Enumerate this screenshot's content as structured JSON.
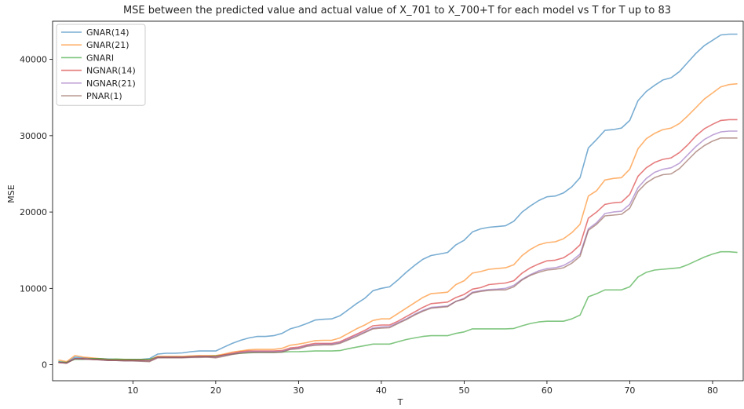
{
  "chart_data": {
    "type": "line",
    "title": "MSE between the predicted value and actual value of X_701 to X_700+T for each model vs T for T up to 83",
    "xlabel": "T",
    "ylabel": "MSE",
    "xlim": [
      0.3,
      83.7
    ],
    "ylim": [
      -2100,
      45000
    ],
    "xticks": [
      10,
      20,
      30,
      40,
      50,
      60,
      70,
      80
    ],
    "yticks": [
      0,
      10000,
      20000,
      30000,
      40000
    ],
    "grid": false,
    "legend_position": "top-left",
    "x": [
      1,
      2,
      3,
      4,
      5,
      6,
      7,
      8,
      9,
      10,
      11,
      12,
      13,
      14,
      15,
      16,
      17,
      18,
      19,
      20,
      21,
      22,
      23,
      24,
      25,
      26,
      27,
      28,
      29,
      30,
      31,
      32,
      33,
      34,
      35,
      36,
      37,
      38,
      39,
      40,
      41,
      42,
      43,
      44,
      45,
      46,
      47,
      48,
      49,
      50,
      51,
      52,
      53,
      54,
      55,
      56,
      57,
      58,
      59,
      60,
      61,
      62,
      63,
      64,
      65,
      66,
      67,
      68,
      69,
      70,
      71,
      72,
      73,
      74,
      75,
      76,
      77,
      78,
      79,
      80,
      81,
      82,
      83
    ],
    "series": [
      {
        "name": "GNAR(14)",
        "color": "#1f77b4",
        "values": [
          400,
          300,
          1000,
          900,
          800,
          800,
          750,
          700,
          700,
          700,
          700,
          800,
          1400,
          1500,
          1500,
          1550,
          1700,
          1800,
          1800,
          1800,
          2300,
          2800,
          3200,
          3500,
          3700,
          3700,
          3800,
          4100,
          4700,
          5000,
          5400,
          5850,
          5950,
          6000,
          6400,
          7200,
          8000,
          8700,
          9700,
          10000,
          10200,
          11100,
          12100,
          13000,
          13800,
          14300,
          14500,
          14700,
          15700,
          16300,
          17400,
          17800,
          18000,
          18100,
          18200,
          18800,
          20000,
          20800,
          21500,
          22000,
          22100,
          22500,
          23300,
          24500,
          28400,
          29500,
          30700,
          30800,
          31000,
          32000,
          34600,
          35800,
          36600,
          37300,
          37600,
          38400,
          39600,
          40800,
          41800,
          42500,
          43200,
          43300,
          43300
        ]
      },
      {
        "name": "GNAR(21)",
        "color": "#ff7f0e",
        "values": [
          600,
          400,
          1200,
          1000,
          900,
          800,
          700,
          700,
          700,
          650,
          650,
          650,
          1100,
          1100,
          1100,
          1100,
          1150,
          1200,
          1200,
          1200,
          1400,
          1650,
          1800,
          1950,
          2000,
          2000,
          2000,
          2150,
          2550,
          2700,
          2900,
          3150,
          3200,
          3200,
          3500,
          4100,
          4700,
          5200,
          5800,
          6000,
          6000,
          6700,
          7400,
          8100,
          8800,
          9300,
          9400,
          9500,
          10500,
          11000,
          12000,
          12200,
          12500,
          12600,
          12700,
          13100,
          14300,
          15100,
          15700,
          16000,
          16100,
          16500,
          17300,
          18400,
          22100,
          22800,
          24200,
          24400,
          24500,
          25600,
          28300,
          29600,
          30300,
          30800,
          31000,
          31600,
          32600,
          33700,
          34800,
          35600,
          36400,
          36700,
          36800
        ]
      },
      {
        "name": "GNARI",
        "color": "#2ca02c",
        "values": [
          350,
          300,
          700,
          700,
          800,
          800,
          700,
          750,
          700,
          700,
          700,
          700,
          1000,
          1000,
          1000,
          1000,
          1050,
          1100,
          1100,
          1150,
          1250,
          1400,
          1500,
          1550,
          1600,
          1600,
          1600,
          1650,
          1700,
          1700,
          1750,
          1800,
          1800,
          1800,
          1850,
          2100,
          2300,
          2500,
          2700,
          2700,
          2700,
          3000,
          3300,
          3500,
          3700,
          3800,
          3800,
          3800,
          4100,
          4300,
          4700,
          4700,
          4700,
          4700,
          4700,
          4750,
          5100,
          5400,
          5600,
          5700,
          5700,
          5700,
          6000,
          6500,
          8900,
          9300,
          9800,
          9800,
          9800,
          10200,
          11500,
          12100,
          12400,
          12500,
          12600,
          12700,
          13100,
          13600,
          14100,
          14500,
          14800,
          14800,
          14700
        ]
      },
      {
        "name": "NGNAR(14)",
        "color": "#d62728",
        "values": [
          300,
          200,
          800,
          800,
          700,
          650,
          600,
          550,
          550,
          550,
          550,
          500,
          1000,
          1000,
          1000,
          1000,
          1050,
          1100,
          1100,
          1050,
          1300,
          1500,
          1700,
          1800,
          1800,
          1800,
          1800,
          1850,
          2200,
          2300,
          2600,
          2800,
          2800,
          2800,
          3000,
          3500,
          4000,
          4500,
          5100,
          5200,
          5200,
          5700,
          6300,
          6900,
          7500,
          8000,
          8100,
          8200,
          8800,
          9200,
          9900,
          10100,
          10500,
          10600,
          10700,
          11000,
          12000,
          12700,
          13200,
          13600,
          13700,
          14000,
          14700,
          15700,
          19200,
          20000,
          21000,
          21200,
          21300,
          22300,
          24700,
          25800,
          26500,
          26900,
          27100,
          27800,
          28800,
          30000,
          30900,
          31500,
          32000,
          32100,
          32100
        ]
      },
      {
        "name": "NGNAR(21)",
        "color": "#9467bd",
        "values": [
          300,
          200,
          800,
          750,
          700,
          650,
          550,
          550,
          500,
          500,
          500,
          500,
          950,
          950,
          950,
          950,
          1000,
          1050,
          1050,
          1000,
          1200,
          1400,
          1600,
          1700,
          1700,
          1700,
          1700,
          1750,
          2050,
          2200,
          2500,
          2650,
          2700,
          2700,
          2900,
          3350,
          3850,
          4300,
          4800,
          4950,
          5000,
          5500,
          6000,
          6600,
          7100,
          7500,
          7600,
          7700,
          8300,
          8700,
          9500,
          9700,
          9850,
          9900,
          10000,
          10400,
          11200,
          11800,
          12300,
          12600,
          12700,
          13000,
          13600,
          14500,
          17800,
          18600,
          19800,
          20000,
          20100,
          21000,
          23200,
          24400,
          25200,
          25600,
          25800,
          26400,
          27500,
          28600,
          29500,
          30100,
          30500,
          30600,
          30600
        ]
      },
      {
        "name": "PNAR(1)",
        "color": "#8c564b",
        "values": [
          300,
          200,
          800,
          750,
          700,
          650,
          550,
          550,
          500,
          500,
          450,
          400,
          900,
          900,
          900,
          900,
          950,
          950,
          1000,
          900,
          1100,
          1350,
          1500,
          1600,
          1600,
          1600,
          1600,
          1650,
          2000,
          2100,
          2400,
          2550,
          2600,
          2600,
          2800,
          3250,
          3700,
          4200,
          4700,
          4800,
          4850,
          5400,
          5900,
          6500,
          7000,
          7400,
          7500,
          7600,
          8300,
          8600,
          9400,
          9600,
          9750,
          9800,
          9800,
          10200,
          11100,
          11700,
          12100,
          12400,
          12500,
          12700,
          13300,
          14200,
          17600,
          18400,
          19500,
          19600,
          19700,
          20500,
          22700,
          23800,
          24500,
          24900,
          25000,
          25700,
          26800,
          27900,
          28700,
          29300,
          29700,
          29700,
          29700
        ]
      }
    ]
  }
}
